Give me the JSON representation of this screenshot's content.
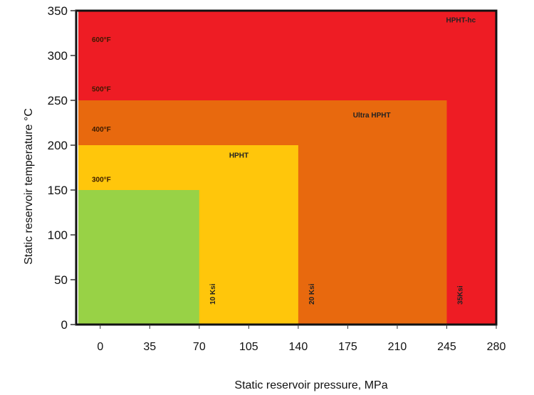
{
  "chart_data": {
    "type": "area",
    "xlabel": "Static reservoir pressure, MPa",
    "ylabel": "Static reservoir temperature °C",
    "xlim": [
      -17,
      280
    ],
    "ylim": [
      0,
      350
    ],
    "x_ticks": [
      "0",
      "35",
      "70",
      "105",
      "140",
      "175",
      "210",
      "245",
      "280"
    ],
    "x_tick_values": [
      0,
      35,
      70,
      105,
      140,
      175,
      210,
      245,
      280
    ],
    "y_ticks": [
      "0",
      "50",
      "100",
      "150",
      "200",
      "250",
      "300",
      "350"
    ],
    "y_tick_values": [
      0,
      50,
      100,
      150,
      200,
      250,
      300,
      350
    ],
    "regions": [
      {
        "name": "HPHT-hc",
        "x_max": 280,
        "y_max": 350,
        "color": "#ee1c24"
      },
      {
        "name": "Ultra HPHT",
        "x_max": 245,
        "y_max": 250,
        "color": "#e8690e"
      },
      {
        "name": "HPHT",
        "x_max": 140,
        "y_max": 200,
        "color": "#ffc60b"
      },
      {
        "name": "",
        "x_max": 70,
        "y_max": 150,
        "color": "#98d246"
      }
    ],
    "region_labels": [
      {
        "text": "HPHT-hc",
        "x": 255,
        "y": 337
      },
      {
        "text": "Ultra HPHT",
        "x": 192,
        "y": 231
      },
      {
        "text": "HPHT",
        "x": 98,
        "y": 186
      }
    ],
    "temperature_labels": [
      {
        "text": "600°F",
        "y": 315
      },
      {
        "text": "500°F",
        "y": 260
      },
      {
        "text": "400°F",
        "y": 215
      },
      {
        "text": "300°F",
        "y": 159
      }
    ],
    "pressure_labels": [
      {
        "text": "10 Ksi",
        "x": 70
      },
      {
        "text": "20 Ksi",
        "x": 140
      },
      {
        "text": "35Ksi",
        "x": 245
      }
    ]
  }
}
